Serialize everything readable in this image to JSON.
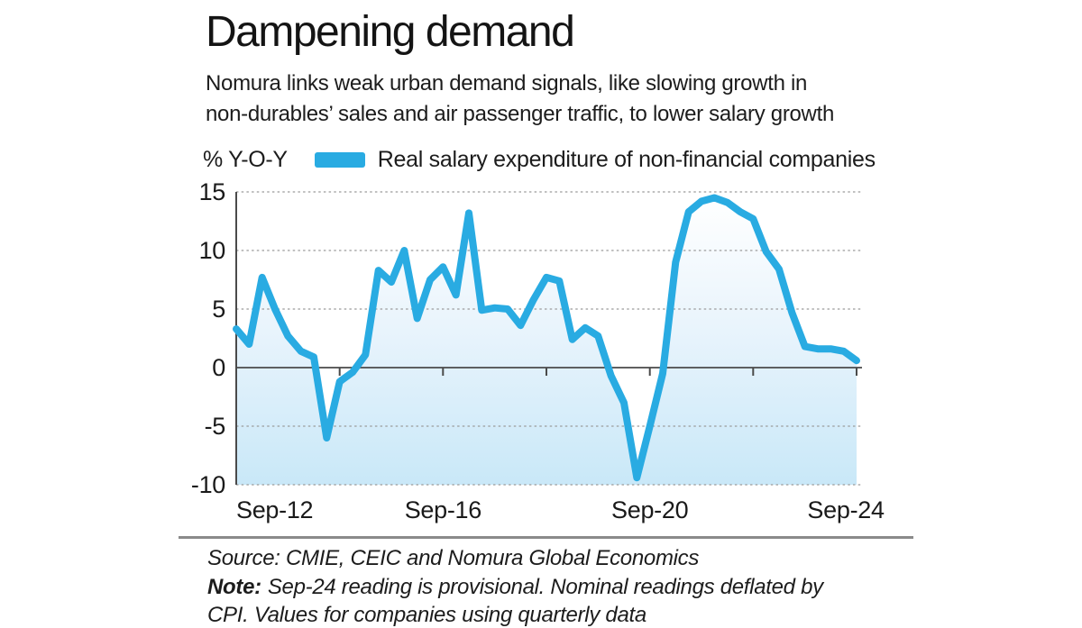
{
  "header": {
    "title": "Dampening demand",
    "subtitle_line1": "Nomura links weak urban demand signals, like slowing growth in",
    "subtitle_line2": "non-durables’ sales and air passenger traffic, to lower salary growth"
  },
  "legend": {
    "axis_unit": "% Y-O-Y",
    "series_label": "Real salary expenditure of non-financial companies"
  },
  "chart_data": {
    "type": "area",
    "title": "Real salary expenditure of non-financial companies",
    "ylabel": "% Y-O-Y",
    "x": [
      "Sep-12",
      "Dec-12",
      "Mar-13",
      "Jun-13",
      "Sep-13",
      "Dec-13",
      "Mar-14",
      "Jun-14",
      "Sep-14",
      "Dec-14",
      "Mar-15",
      "Jun-15",
      "Sep-15",
      "Dec-15",
      "Mar-16",
      "Jun-16",
      "Sep-16",
      "Dec-16",
      "Mar-17",
      "Jun-17",
      "Sep-17",
      "Dec-17",
      "Mar-18",
      "Jun-18",
      "Sep-18",
      "Dec-18",
      "Mar-19",
      "Jun-19",
      "Sep-19",
      "Dec-19",
      "Mar-20",
      "Jun-20",
      "Sep-20",
      "Dec-20",
      "Mar-21",
      "Jun-21",
      "Sep-21",
      "Dec-21",
      "Mar-22",
      "Jun-22",
      "Sep-22",
      "Dec-22",
      "Mar-23",
      "Jun-23",
      "Sep-23",
      "Dec-23",
      "Mar-24",
      "Jun-24",
      "Sep-24"
    ],
    "values": [
      3.3,
      2.0,
      7.7,
      5.0,
      2.7,
      1.4,
      0.9,
      -6.0,
      -1.2,
      -0.4,
      1.1,
      8.3,
      7.3,
      10.0,
      4.2,
      7.5,
      8.6,
      6.2,
      13.2,
      4.9,
      5.1,
      5.0,
      3.6,
      5.8,
      7.7,
      7.4,
      2.4,
      3.4,
      2.7,
      -0.7,
      -3.0,
      -9.4,
      -5.0,
      -0.5,
      9.0,
      13.3,
      14.2,
      14.5,
      14.1,
      13.3,
      12.7,
      9.9,
      8.4,
      4.7,
      1.8,
      1.6,
      1.6,
      1.4,
      0.6
    ],
    "ylim": [
      -10,
      15
    ],
    "yticks": [
      15,
      10,
      5,
      0,
      -5,
      -10
    ],
    "xtick_labels": [
      "Sep-12",
      "Sep-16",
      "Sep-20",
      "Sep-24"
    ],
    "xtick_indices": [
      0,
      16,
      32,
      48
    ],
    "axis_tick_indices": [
      8,
      16,
      24,
      32,
      40,
      48
    ],
    "grid": "dotted-horizontal",
    "legend_position": "top-left",
    "line_color": "#29ABE2",
    "area_gradient": [
      "#FFFFFF",
      "#E9F4FC",
      "#C9E8F8"
    ],
    "grid_color": "#9B9B9B",
    "axis_color": "#4A4A4A"
  },
  "footer": {
    "source": "Source: CMIE, CEIC and Nomura Global Economics",
    "note_label": "Note:",
    "note": "Sep-24 reading is provisional. Nominal readings deflated by",
    "note_continued": "CPI. Values for companies using quarterly data"
  }
}
